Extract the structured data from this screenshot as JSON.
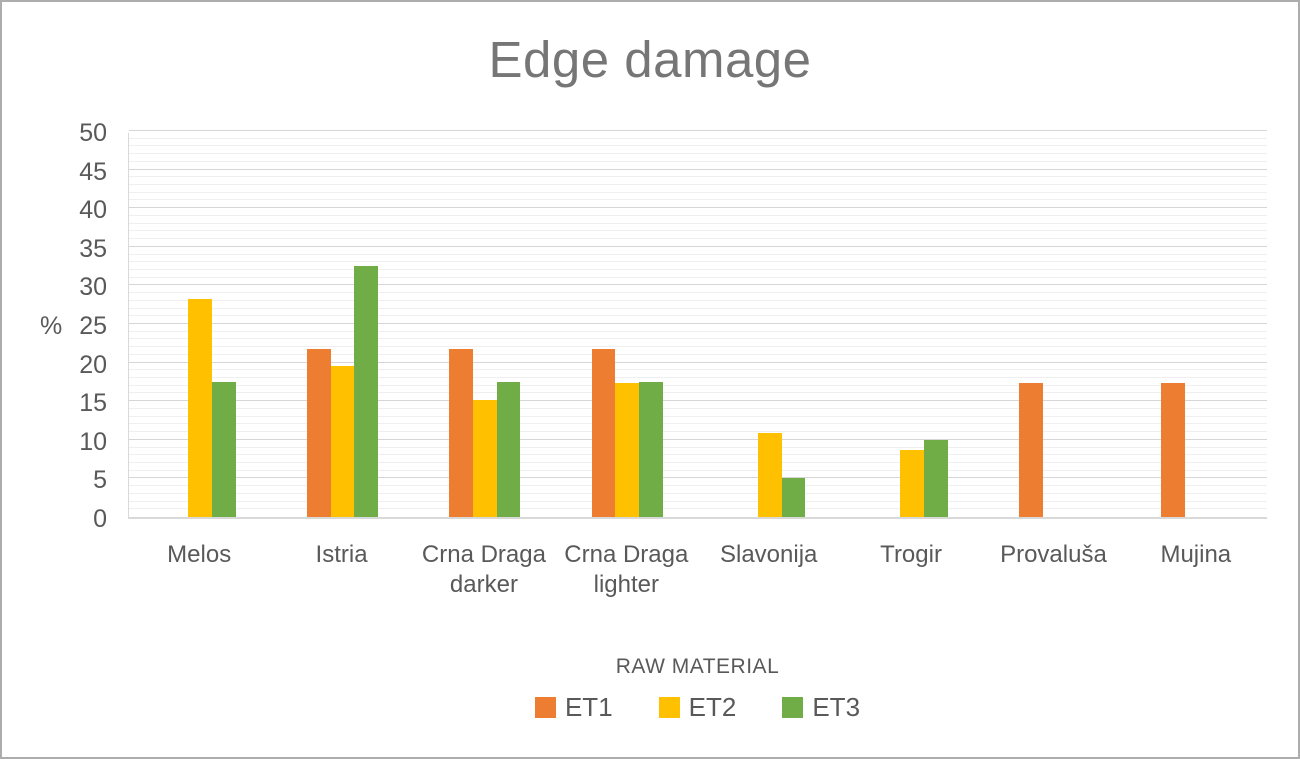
{
  "chart_data": {
    "type": "bar",
    "title": "Edge damage",
    "ylabel": "%",
    "xlabel": "RAW MATERIAL",
    "categories": [
      "Melos",
      "Istria",
      "Crna Draga darker",
      "Crna Draga lighter",
      "Slavonija",
      "Trogir",
      "Provaluša",
      "Mujina"
    ],
    "series": [
      {
        "name": "ET1",
        "color": "#ED7D31",
        "values": [
          0,
          21.7,
          21.7,
          21.7,
          0,
          0,
          17.4,
          17.4
        ]
      },
      {
        "name": "ET2",
        "color": "#FFC000",
        "values": [
          28.3,
          19.6,
          15.2,
          17.4,
          10.9,
          8.7,
          0,
          0
        ]
      },
      {
        "name": "ET3",
        "color": "#70AD47",
        "values": [
          17.5,
          32.5,
          17.5,
          17.5,
          5,
          10,
          0,
          0
        ]
      }
    ],
    "ylim": [
      0,
      50
    ],
    "yticks": [
      0,
      5,
      10,
      15,
      20,
      25,
      30,
      35,
      40,
      45,
      50
    ],
    "grid": {
      "major_step": 5,
      "minor_step": 1,
      "major_color": "#d6d6d6",
      "minor_color": "#efefef"
    },
    "legend_position": "bottom"
  },
  "style": {
    "title_color": "#767676",
    "axis_text_color": "#595959",
    "axis_line_color": "#d9d9d9",
    "background": "#ffffff",
    "border_color": "#adadad"
  }
}
